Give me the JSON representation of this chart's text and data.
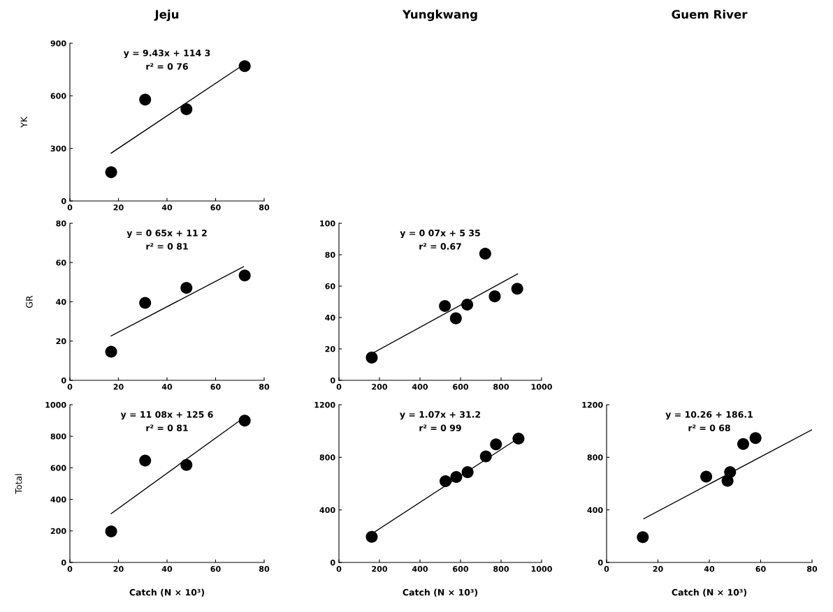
{
  "chart_data": [
    {
      "type": "scatter",
      "title": "Jeju",
      "ylabel": "YK",
      "xlim": [
        0,
        80
      ],
      "xticks": [
        0,
        20,
        40,
        60,
        80
      ],
      "ylim": [
        0,
        900
      ],
      "yticks": [
        0,
        300,
        600,
        900
      ],
      "grid": false,
      "annotations": [
        "y = 9.43x + 114 3",
        "r² = 0 76"
      ],
      "series": [
        {
          "color": "#000000",
          "marker": "circle",
          "x": [
            17,
            31,
            48,
            72
          ],
          "values": [
            164,
            578,
            524,
            770
          ]
        },
        {
          "type": "line",
          "marker": "none",
          "color": "#000000",
          "x": [
            17,
            71
          ],
          "values": [
            273,
            773
          ]
        }
      ]
    },
    {
      "type": "scatter",
      "ylabel": "GR",
      "xlim": [
        0,
        80
      ],
      "xticks": [
        0,
        20,
        40,
        60,
        80
      ],
      "ylim": [
        0,
        80
      ],
      "yticks": [
        0,
        20,
        40,
        60,
        80
      ],
      "grid": false,
      "annotations": [
        "y = 0 65x + 11 2",
        "r² = 0 81"
      ],
      "series": [
        {
          "color": "#000000",
          "marker": "circle",
          "x": [
            17,
            31,
            48,
            72
          ],
          "values": [
            14.6,
            39.5,
            47.1,
            53.4
          ]
        },
        {
          "type": "line",
          "marker": "none",
          "color": "#000000",
          "x": [
            17,
            71.5
          ],
          "values": [
            22.6,
            57.9
          ]
        }
      ]
    },
    {
      "type": "scatter",
      "title": "Yungkwang",
      "xlim": [
        0,
        1000
      ],
      "xticks": [
        0,
        200,
        400,
        600,
        800,
        1000
      ],
      "ylim": [
        0,
        100
      ],
      "yticks": [
        0,
        20,
        40,
        60,
        80,
        100
      ],
      "grid": false,
      "annotations": [
        "y = 0 07x + 5 35",
        "r² = 0.67"
      ],
      "series": [
        {
          "color": "#000000",
          "marker": "circle",
          "x": [
            162,
            523,
            577,
            633,
            722,
            769,
            880
          ],
          "values": [
            14.5,
            47.3,
            39.5,
            48.2,
            80.7,
            53.5,
            58.3
          ]
        },
        {
          "type": "line",
          "marker": "none",
          "color": "#000000",
          "x": [
            162,
            882
          ],
          "values": [
            17,
            67.8
          ]
        }
      ]
    },
    {
      "type": "scatter",
      "ylabel": "Total",
      "xlabel": "Catch (N × 10³)",
      "xlim": [
        0,
        80
      ],
      "xticks": [
        0,
        20,
        40,
        60,
        80
      ],
      "ylim": [
        0,
        1000
      ],
      "yticks": [
        0,
        200,
        400,
        600,
        800,
        1000
      ],
      "grid": false,
      "annotations": [
        "y = 11 08x + 125 6",
        "r² = 0 81"
      ],
      "series": [
        {
          "color": "#000000",
          "marker": "circle",
          "x": [
            17,
            31,
            48,
            72
          ],
          "values": [
            197,
            646,
            618,
            899
          ]
        },
        {
          "type": "line",
          "marker": "none",
          "color": "#000000",
          "x": [
            17,
            70
          ],
          "values": [
            310,
            900
          ]
        }
      ]
    },
    {
      "type": "scatter",
      "xlabel": "Catch (N × 10³)",
      "xlim": [
        0,
        1000
      ],
      "xticks": [
        0,
        200,
        400,
        600,
        800,
        1000
      ],
      "ylim": [
        0,
        1200
      ],
      "yticks": [
        0,
        400,
        800,
        1200
      ],
      "grid": false,
      "annotations": [
        "y = 1.07x + 31.2",
        "r² = 0 99"
      ],
      "series": [
        {
          "color": "#000000",
          "marker": "circle",
          "x": [
            162,
            526,
            579,
            635,
            725,
            775,
            886
          ],
          "values": [
            195,
            619,
            651,
            687,
            807,
            899,
            942
          ]
        },
        {
          "type": "line",
          "marker": "none",
          "color": "#000000",
          "x": [
            162,
            886
          ],
          "values": [
            218,
            946
          ]
        }
      ]
    },
    {
      "type": "scatter",
      "title": "Guem River",
      "xlabel": "Catch (N × 10³)",
      "xlim": [
        0,
        80
      ],
      "xticks": [
        0,
        20,
        40,
        60,
        80
      ],
      "ylim": [
        0,
        1200
      ],
      "yticks": [
        0,
        400,
        800,
        1200
      ],
      "grid": false,
      "annotations": [
        "y = 10.26 + 186.1",
        "r² = 0 68"
      ],
      "series": [
        {
          "color": "#000000",
          "marker": "circle",
          "x": [
            14.1,
            38.8,
            47.1,
            48.1,
            53.2,
            58.0
          ],
          "values": [
            193,
            653,
            621,
            688,
            901,
            946
          ]
        },
        {
          "type": "line",
          "marker": "none",
          "color": "#000000",
          "x": [
            14.5,
            80
          ],
          "values": [
            333,
            1010
          ]
        }
      ]
    }
  ]
}
